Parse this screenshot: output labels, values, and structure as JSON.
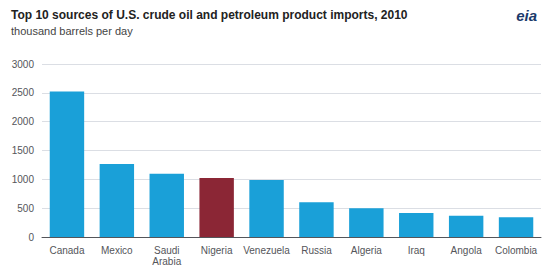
{
  "chart_data": {
    "type": "bar",
    "title": "Top 10 sources of U.S. crude oil and petroleum product imports, 2010",
    "subtitle": "thousand barrels per day",
    "categories": [
      "Canada",
      "Mexico",
      "Saudi\nArabia",
      "Nigeria",
      "Venezuela",
      "Russia",
      "Algeria",
      "Iraq",
      "Angola",
      "Colombia"
    ],
    "values": [
      2523,
      1265,
      1098,
      1024,
      989,
      604,
      500,
      418,
      369,
      342
    ],
    "colors": [
      "#1aa0d8",
      "#1aa0d8",
      "#1aa0d8",
      "#8b2635",
      "#1aa0d8",
      "#1aa0d8",
      "#1aa0d8",
      "#1aa0d8",
      "#1aa0d8",
      "#1aa0d8"
    ],
    "ylim": [
      0,
      3000
    ],
    "yticks": [
      0,
      500,
      1000,
      1500,
      2000,
      2500,
      3000
    ],
    "grid": true,
    "annotations": [
      "eia"
    ]
  }
}
